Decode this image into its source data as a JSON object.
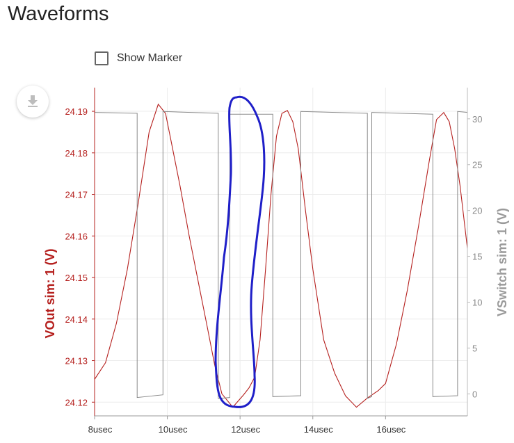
{
  "page": {
    "title": "Waveforms"
  },
  "controls": {
    "show_marker_label": "Show Marker",
    "show_marker_checked": false
  },
  "colors": {
    "vout": "#b5201e",
    "vswitch": "#8a8a8a",
    "annotation": "#1f1fc8",
    "grid": "#ececec"
  },
  "icons": {
    "download": "download-icon"
  },
  "chart_data": {
    "type": "line",
    "title": "",
    "xlabel": "",
    "x_ticks": [
      {
        "value": 8,
        "label": "8usec"
      },
      {
        "value": 10,
        "label": "10usec"
      },
      {
        "value": 12,
        "label": "12usec"
      },
      {
        "value": 14,
        "label": "14usec"
      },
      {
        "value": 16,
        "label": "16usec"
      }
    ],
    "xlim": [
      8,
      18.25
    ],
    "left_axis": {
      "label": "VOut sim: 1 (V)",
      "ylim": [
        24.1167,
        24.1957
      ],
      "ticks": [
        "24.19",
        "24.18",
        "24.17",
        "24.16",
        "24.15",
        "24.14",
        "24.13",
        "24.12"
      ],
      "tick_values": [
        24.19,
        24.18,
        24.17,
        24.16,
        24.15,
        24.14,
        24.13,
        24.12
      ]
    },
    "right_axis": {
      "label": "VSwitch sim: 1 (V)",
      "ylim": [
        -2.4,
        33.4
      ],
      "ticks": [
        "30",
        "25",
        "20",
        "15",
        "10",
        "5",
        "0"
      ],
      "tick_values": [
        30,
        25,
        20,
        15,
        10,
        5,
        0
      ]
    },
    "grid": true,
    "series": [
      {
        "name": "VOut sim: 1",
        "axis": "left",
        "x": [
          8.0,
          8.3,
          8.6,
          8.9,
          9.2,
          9.5,
          9.75,
          9.95,
          10.1,
          10.35,
          10.6,
          10.85,
          11.1,
          11.3,
          11.5,
          11.8,
          12.1,
          12.25,
          12.4,
          12.55,
          12.7,
          12.85,
          13.0,
          13.15,
          13.3,
          13.45,
          13.6,
          13.8,
          14.0,
          14.3,
          14.6,
          14.9,
          15.2,
          15.5,
          15.8,
          16.0,
          16.3,
          16.6,
          16.9,
          17.2,
          17.4,
          17.6,
          17.75,
          17.9,
          18.05,
          18.25
        ],
        "y": [
          24.1255,
          24.1295,
          24.139,
          24.152,
          24.168,
          24.185,
          24.1917,
          24.1895,
          24.183,
          24.172,
          24.16,
          24.149,
          24.138,
          24.129,
          24.122,
          24.1188,
          24.1218,
          24.1235,
          24.126,
          24.135,
          24.152,
          24.17,
          24.184,
          24.1895,
          24.1902,
          24.1875,
          24.181,
          24.166,
          24.152,
          24.135,
          24.127,
          24.1215,
          24.1188,
          24.121,
          24.1228,
          24.1245,
          24.134,
          24.147,
          24.162,
          24.178,
          24.188,
          24.1897,
          24.1875,
          24.181,
          24.172,
          24.157
        ]
      },
      {
        "name": "VSwitch sim: 1",
        "axis": "right",
        "x": [
          8.0,
          9.17,
          9.17,
          9.88,
          9.88,
          11.4,
          11.4,
          11.72,
          11.72,
          12.9,
          12.9,
          13.67,
          13.67,
          15.5,
          15.5,
          15.62,
          15.62,
          17.3,
          17.3,
          17.98,
          17.98,
          18.25
        ],
        "y": [
          30.7,
          30.6,
          -0.4,
          -0.1,
          30.8,
          30.6,
          -0.5,
          -0.4,
          30.5,
          30.5,
          -0.3,
          -0.2,
          30.8,
          30.6,
          -0.5,
          -0.3,
          30.7,
          30.5,
          -0.3,
          -0.2,
          30.8,
          30.7
        ]
      }
    ]
  }
}
